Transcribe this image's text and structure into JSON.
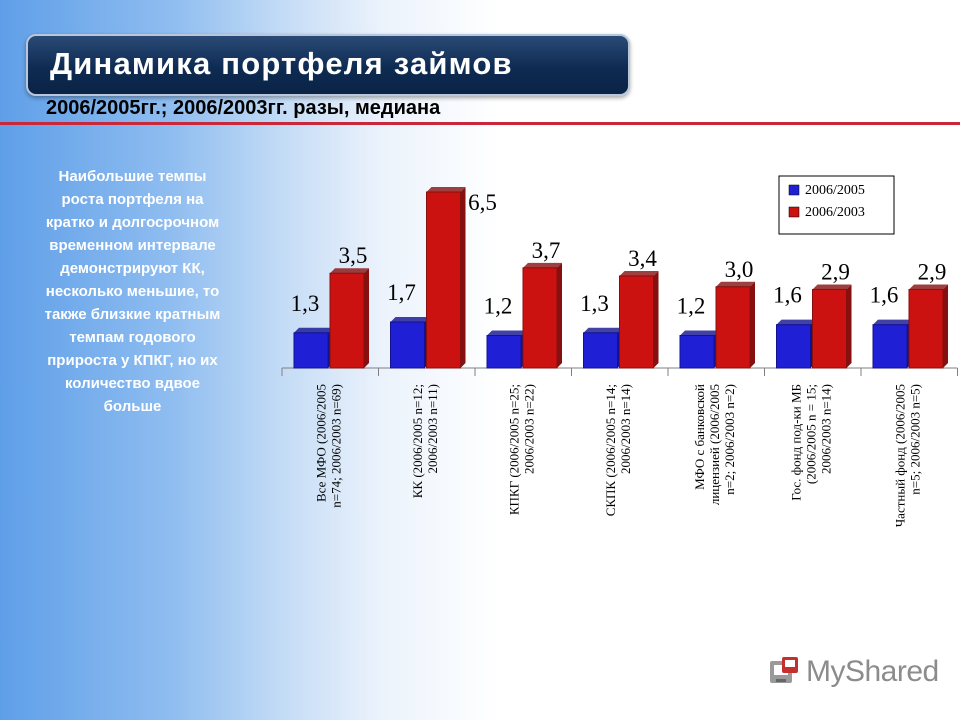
{
  "header": {
    "title": "Динамика портфеля займов",
    "subtitle": "2006/2005гг.; 2006/2003гг. разы, медиана"
  },
  "sidebar_text": "Наибольшие темпы роста портфеля на кратко и долгосрочном временном интервале демонстрируют КК, несколько меньшие, то также близкие кратным темпам годового прироста у КПКГ, но их количество вдвое больше",
  "logo": {
    "text": "MyShared",
    "icon": "myshared-logo-icon"
  },
  "colors": {
    "series1": "#1f1fd6",
    "series2": "#cc1111",
    "title_bg": "#0e2b52",
    "accent_line": "#c8283a"
  },
  "chart_data": {
    "type": "bar",
    "categories": [
      [
        "Все МФО (2006/2005",
        "n=74; 2006/2003 n=69)"
      ],
      [
        "КК (2006/2005 n=12;",
        "2006/2003 n=11)"
      ],
      [
        "КПКГ (2006/2005 n=25;",
        "2006/2003 n=22)"
      ],
      [
        "СКПК (2006/2005 n=14;",
        "2006/2003 n=14)"
      ],
      [
        "МФО с банковской",
        "лицензией (2006/2005",
        "n=2; 2006/2003 n=2)"
      ],
      [
        "Гос. фонд под-ки МБ",
        "(2006/2005 n = 15;",
        "2006/2003 n=14)"
      ],
      [
        "Частный фонд (2006/2005",
        "n=5; 2006/2003 n=5)"
      ]
    ],
    "series": [
      {
        "name": "2006/2005",
        "values": [
          1.3,
          1.7,
          1.2,
          1.3,
          1.2,
          1.6,
          1.6
        ],
        "labels": [
          "1,3",
          "1,7",
          "1,2",
          "1,3",
          "1,2",
          "1,6",
          "1,6"
        ]
      },
      {
        "name": "2006/2003",
        "values": [
          3.5,
          6.5,
          3.7,
          3.4,
          3.0,
          2.9,
          2.9
        ],
        "labels": [
          "3,5",
          "6,5",
          "3,7",
          "3,4",
          "3,0",
          "2,9",
          "2,9"
        ]
      }
    ],
    "ylim": [
      0,
      6.5
    ],
    "grid": false,
    "legend": "top-right"
  }
}
